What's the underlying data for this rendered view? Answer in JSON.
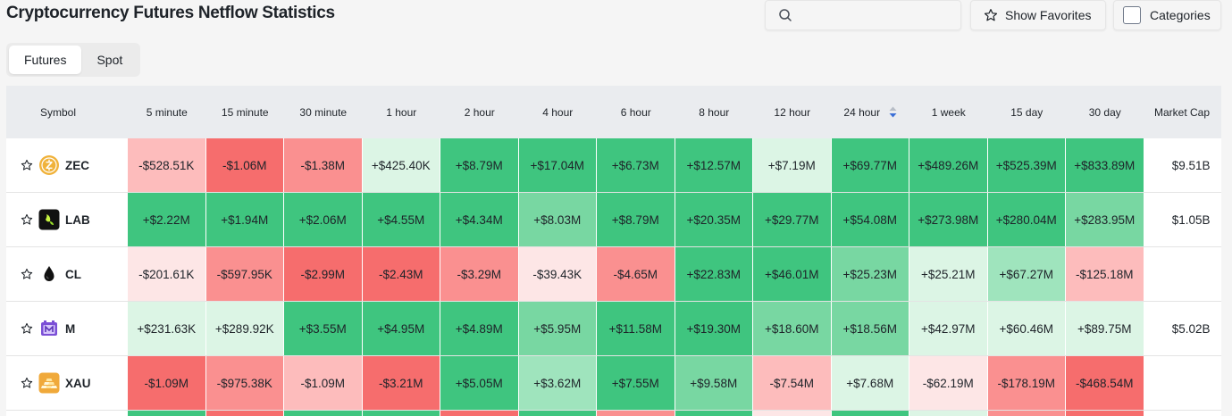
{
  "title": "Cryptocurrency Futures Netflow Statistics",
  "search": {
    "placeholder": ""
  },
  "buttons": {
    "favorites": "Show Favorites",
    "categories": "Categories"
  },
  "tabs": [
    {
      "label": "Futures",
      "active": true
    },
    {
      "label": "Spot",
      "active": false
    }
  ],
  "columns": [
    "Symbol",
    "5 minute",
    "15 minute",
    "30 minute",
    "1 hour",
    "2 hour",
    "4 hour",
    "6 hour",
    "8 hour",
    "12 hour",
    "24 hour",
    "1 week",
    "15 day",
    "30 day",
    "Market Cap"
  ],
  "rows": [
    {
      "symbol": "ZEC",
      "icon": "zec-coin-icon",
      "market_cap": "$9.51B",
      "values": [
        "-$528.51K",
        "-$1.06M",
        "-$1.38M",
        "+$425.40K",
        "+$8.79M",
        "+$17.04M",
        "+$6.73M",
        "+$12.57M",
        "+$7.19M",
        "+$69.77M",
        "+$489.26M",
        "+$525.39M",
        "+$833.89M"
      ],
      "levels": [
        "neg2",
        "neg4",
        "neg3",
        "pos1",
        "pos4",
        "pos4",
        "pos4",
        "pos4",
        "pos1",
        "pos4",
        "pos4",
        "pos4",
        "pos4"
      ]
    },
    {
      "symbol": "LAB",
      "icon": "lab-coin-icon",
      "market_cap": "$1.05B",
      "values": [
        "+$2.22M",
        "+$1.94M",
        "+$2.06M",
        "+$4.55M",
        "+$4.34M",
        "+$8.03M",
        "+$8.79M",
        "+$20.35M",
        "+$29.77M",
        "+$54.08M",
        "+$273.98M",
        "+$280.04M",
        "+$283.95M"
      ],
      "levels": [
        "pos4",
        "pos4",
        "pos4",
        "pos4",
        "pos4",
        "pos3",
        "pos4",
        "pos4",
        "pos4",
        "pos4",
        "pos4",
        "pos4",
        "pos3"
      ]
    },
    {
      "symbol": "CL",
      "icon": "oil-drop-icon",
      "market_cap": "",
      "values": [
        "-$201.61K",
        "-$597.95K",
        "-$2.99M",
        "-$2.43M",
        "-$3.29M",
        "-$39.43K",
        "-$4.65M",
        "+$22.83M",
        "+$46.01M",
        "+$25.23M",
        "+$25.21M",
        "+$67.27M",
        "-$125.18M"
      ],
      "levels": [
        "neg1",
        "neg3",
        "neg4",
        "neg4",
        "neg3",
        "neg1",
        "neg3",
        "pos4",
        "pos4",
        "pos3",
        "pos1",
        "pos2",
        "neg2"
      ]
    },
    {
      "symbol": "M",
      "icon": "m-coin-icon",
      "market_cap": "$5.02B",
      "values": [
        "+$231.63K",
        "+$289.92K",
        "+$3.55M",
        "+$4.95M",
        "+$4.89M",
        "+$5.95M",
        "+$11.58M",
        "+$19.30M",
        "+$18.60M",
        "+$18.56M",
        "+$42.97M",
        "+$60.46M",
        "+$89.75M"
      ],
      "levels": [
        "pos1",
        "pos1",
        "pos4",
        "pos4",
        "pos4",
        "pos3",
        "pos4",
        "pos4",
        "pos3",
        "pos3",
        "pos1",
        "pos1",
        "pos1"
      ]
    },
    {
      "symbol": "XAU",
      "icon": "gold-bars-icon",
      "market_cap": "",
      "values": [
        "-$1.09M",
        "-$975.38K",
        "-$1.09M",
        "-$3.21M",
        "+$5.05M",
        "+$3.62M",
        "+$7.55M",
        "+$9.58M",
        "-$7.54M",
        "+$7.68M",
        "-$62.19M",
        "-$178.19M",
        "-$468.54M"
      ],
      "levels": [
        "neg4",
        "neg3",
        "neg2",
        "neg4",
        "pos4",
        "pos2",
        "pos4",
        "pos3",
        "neg2",
        "pos1",
        "neg1",
        "neg3",
        "neg4"
      ]
    }
  ],
  "partial_row_levels": [
    "pos4",
    "neg4",
    "pos4",
    "pos4",
    "neg4",
    "pos4",
    "neg3",
    "pos4",
    "neg1",
    "pos4",
    "pos1",
    "neg3",
    "neg4"
  ]
}
